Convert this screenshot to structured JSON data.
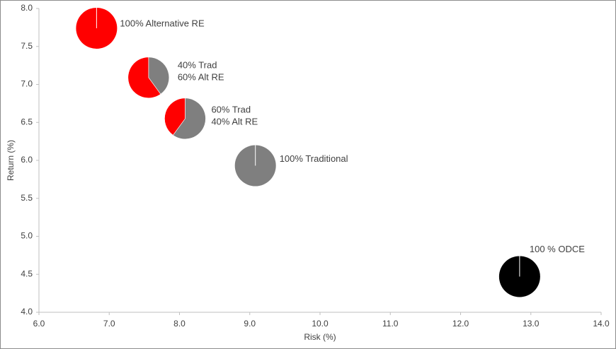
{
  "chart_data": {
    "type": "pie-scatter",
    "x_label": "Risk (%)",
    "y_label": "Return (%)",
    "xlim": [
      6,
      14
    ],
    "xticks": [
      {
        "value": 6,
        "label": "6.0"
      },
      {
        "value": 7,
        "label": "7.0"
      },
      {
        "value": 8,
        "label": "8.0"
      },
      {
        "value": 9,
        "label": "9.0"
      },
      {
        "value": 10,
        "label": "10.0"
      },
      {
        "value": 11,
        "label": "11.0"
      },
      {
        "value": 12,
        "label": "12.0"
      },
      {
        "value": 13,
        "label": "13.0"
      },
      {
        "value": 14,
        "label": "14.0"
      }
    ],
    "ylim": [
      4,
      8
    ],
    "yticks": [
      {
        "value": 4,
        "label": "4.0"
      },
      4.5,
      {
        "value": 5,
        "label": "5.0"
      },
      5.5,
      {
        "value": 6,
        "label": "6.0"
      },
      6.5,
      {
        "value": 7,
        "label": "7.0"
      },
      7.5,
      {
        "value": 8,
        "label": "8.0"
      }
    ],
    "points": [
      {
        "x": 6.82,
        "y": 7.74,
        "labels": [
          "100% Alternative RE"
        ],
        "shares": [
          100
        ],
        "colors": [
          "#ff0000"
        ]
      },
      {
        "x": 7.56,
        "y": 7.09,
        "labels": [
          "40% Trad",
          "60% Alt RE"
        ],
        "shares": [
          40,
          60
        ],
        "colors": [
          "#7f7f7f",
          "#ff0000"
        ]
      },
      {
        "x": 8.08,
        "y": 6.55,
        "labels": [
          "60% Trad",
          "40% Alt RE"
        ],
        "shares": [
          60,
          40
        ],
        "colors": [
          "#7f7f7f",
          "#ff0000"
        ]
      },
      {
        "x": 9.08,
        "y": 5.93,
        "labels": [
          "100% Traditional"
        ],
        "shares": [
          100
        ],
        "colors": [
          "#7f7f7f"
        ]
      },
      {
        "x": 12.84,
        "y": 4.47,
        "labels": [
          "100 % ODCE"
        ],
        "shares": [
          100
        ],
        "colors": [
          "#000000"
        ]
      }
    ]
  }
}
